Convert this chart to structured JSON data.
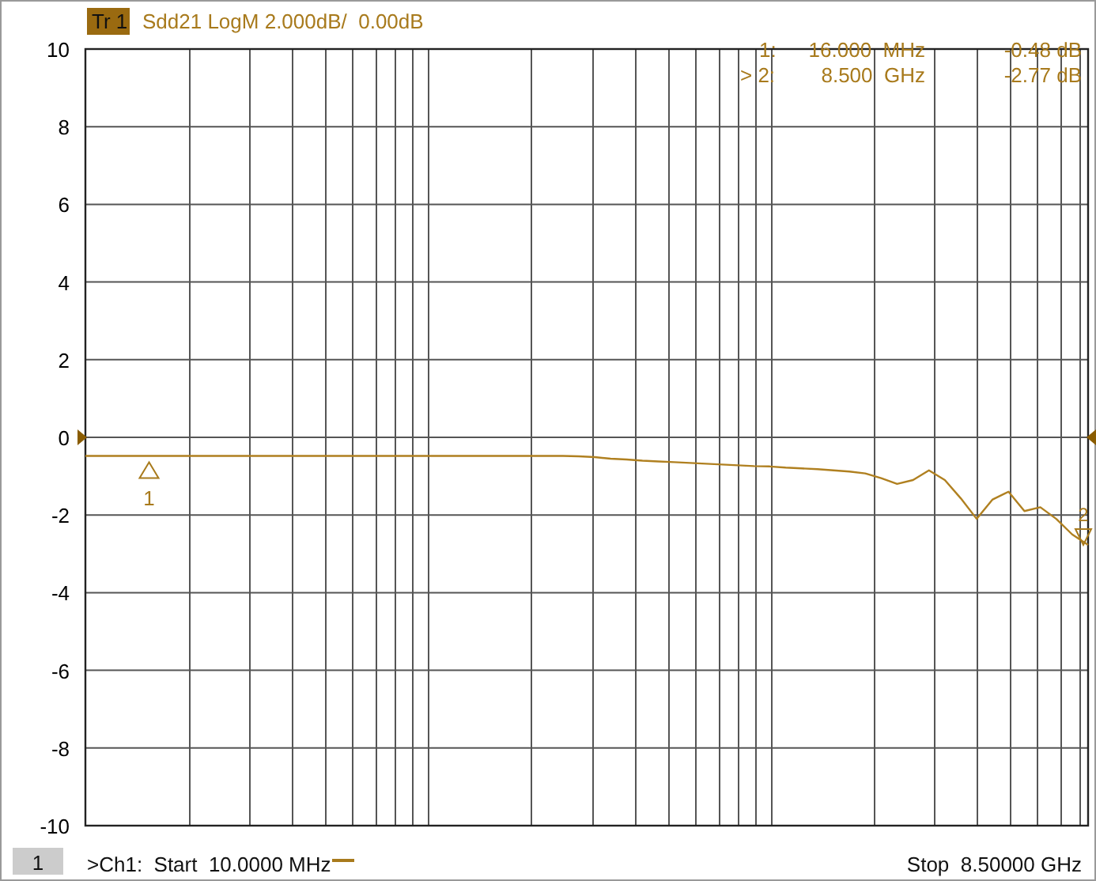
{
  "chart_data": {
    "type": "line",
    "annotations": [
      "Tr 1",
      "Sdd21 LogM 2.000dB/  0.00dB",
      "1:",
      "16.000  MHz",
      "-0.48 dB",
      "> 2:",
      "8.500  GHz",
      "-2.77 dB",
      ">Ch1:  Start  10.0000 MHz",
      "Stop  8.50000 GHz",
      "1",
      "1",
      "2"
    ],
    "categories": [
      null,
      null,
      null,
      null,
      null,
      null,
      null,
      null,
      null,
      null,
      null,
      null,
      null,
      null,
      null,
      null,
      null,
      null,
      null,
      null,
      null,
      null,
      null,
      null,
      null,
      null,
      null,
      null,
      null,
      null,
      null,
      null,
      null,
      null,
      null,
      null,
      null,
      null,
      null,
      null,
      null,
      null,
      null,
      null,
      null,
      null,
      null,
      null,
      null,
      null,
      null,
      null,
      null,
      null,
      null,
      null,
      null,
      null,
      null,
      null,
      null,
      null,
      null,
      null
    ],
    "series": [
      {
        "color": "#b08020",
        "values": [
          -0.48,
          -0.48,
          -0.48,
          -0.48,
          -0.48,
          -0.48,
          -0.48,
          -0.48,
          -0.48,
          -0.48,
          -0.48,
          -0.48,
          -0.48,
          -0.48,
          -0.48,
          -0.48,
          -0.48,
          -0.48,
          -0.48,
          -0.48,
          -0.48,
          -0.48,
          -0.48,
          -0.48,
          -0.48,
          -0.48,
          -0.48,
          -0.48,
          -0.48,
          -0.48,
          -0.48,
          -0.49,
          -0.51,
          -0.55,
          -0.57,
          -0.6,
          -0.62,
          -0.64,
          -0.66,
          -0.68,
          -0.7,
          -0.72,
          -0.74,
          -0.75,
          -0.78,
          -0.8,
          -0.82,
          -0.85,
          -0.88,
          -0.93,
          -1.05,
          -1.2,
          -1.1,
          -0.85,
          -1.1,
          -1.57,
          -2.1,
          -1.6,
          -1.4,
          -1.9,
          -1.8,
          -2.1,
          -2.5,
          -2.77
        ]
      }
    ],
    "ylim": [
      -10,
      10
    ],
    "yticks": [
      -10,
      -8,
      -6,
      -4,
      -2,
      0,
      2,
      4,
      6,
      8,
      10
    ],
    "grid": true,
    "tick_labels": "y",
    "line_style": "solid"
  }
}
